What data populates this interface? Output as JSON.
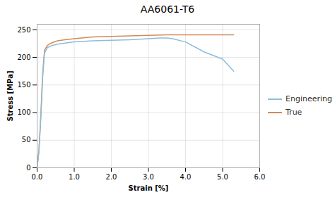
{
  "chart_data": {
    "type": "line",
    "title": "AA6061-T6",
    "xlabel": "Strain [%]",
    "ylabel": "Stress [MPa]",
    "xlim": [
      0,
      6
    ],
    "ylim": [
      0,
      260
    ],
    "xticks": [
      0,
      1,
      2,
      3,
      4,
      5,
      6
    ],
    "yticks": [
      0,
      50,
      100,
      150,
      200,
      250
    ],
    "grid": true,
    "legend": "right",
    "series": [
      {
        "name": "Engineering",
        "color": "#8CBCDA",
        "x": [
          0,
          0.05,
          0.1,
          0.15,
          0.2,
          0.28,
          0.38,
          0.55,
          0.75,
          1.0,
          1.5,
          2.0,
          2.5,
          3.0,
          3.3,
          3.5,
          3.65,
          4.0,
          4.5,
          5.0,
          5.3
        ],
        "values": [
          0,
          30,
          90,
          165,
          208,
          218,
          221,
          224,
          226,
          228,
          230,
          231,
          232,
          234,
          235,
          235,
          234,
          228,
          210,
          197,
          175
        ]
      },
      {
        "name": "True",
        "color": "#D4895A",
        "x": [
          0,
          0.05,
          0.1,
          0.15,
          0.2,
          0.28,
          0.38,
          0.55,
          0.75,
          1.0,
          1.5,
          2.0,
          2.5,
          3.0,
          3.5,
          4.0,
          4.5,
          5.0,
          5.3
        ],
        "values": [
          0,
          32,
          95,
          170,
          213,
          222,
          226,
          230,
          232,
          234,
          237,
          238,
          239,
          240,
          241,
          241,
          241,
          241,
          241
        ]
      }
    ]
  }
}
